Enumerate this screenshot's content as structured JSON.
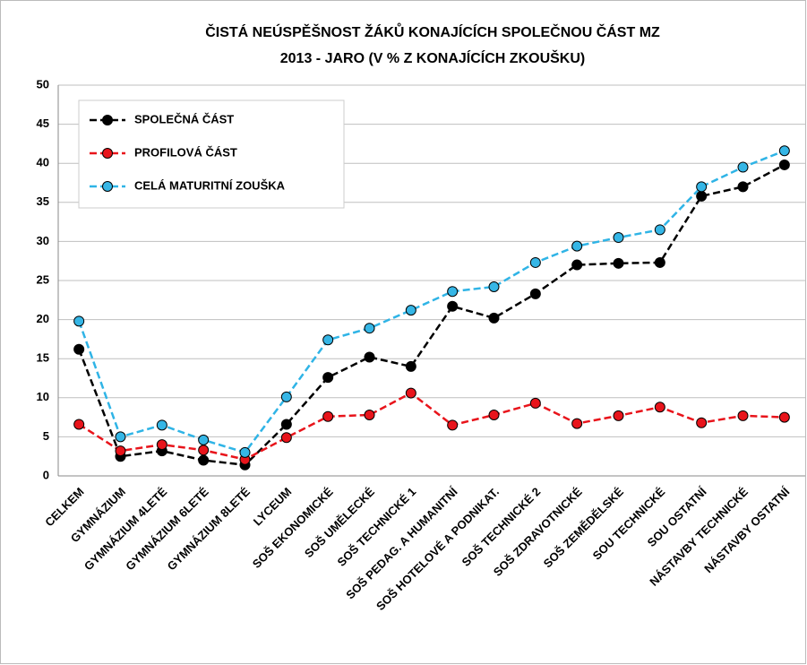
{
  "chart_data": {
    "type": "line",
    "title": [
      "ČISTÁ NEÚSPĚŠNOST ŽÁKŮ KONAJÍCÍCH SPOLEČNOU ČÁST MZ",
      "2013 - JARO (V % Z KONAJÍCÍCH ZKOUŠKU)"
    ],
    "categories": [
      "CELKEM",
      "GYMNÁZIUM",
      "GYMNÁZIUM 4LETÉ",
      "GYMNÁZIUM 6LETÉ",
      "GYMNÁZIUM 8LETÉ",
      "LYCEUM",
      "SOŠ EKONOMICKÉ",
      "SOŠ UMĚLECKÉ",
      "SOŠ TECHNICKÉ 1",
      "SOŠ PEDAG. A HUMANITNÍ",
      "SOŠ HOTELOVÉ A PODNIKAT.",
      "SOŠ TECHNICKÉ 2",
      "SOŠ ZDRAVOTNICKÉ",
      "SOŠ ZEMĚDĚLSKÉ",
      "SOU TECHNICKÉ",
      "SOU OSTATNÍ",
      "NÁSTAVBY TECHNICKÉ",
      "NÁSTAVBY OSTATNÍ"
    ],
    "series": [
      {
        "name": "SPOLEČNÁ ČÁST",
        "color": "#000000",
        "marker_color": "#000000",
        "values": [
          16.2,
          2.5,
          3.2,
          2.0,
          1.4,
          6.6,
          12.6,
          15.2,
          14.0,
          21.7,
          20.2,
          23.3,
          27.0,
          27.2,
          27.3,
          35.8,
          37.0,
          39.8
        ]
      },
      {
        "name": "PROFILOVÁ ČÁST",
        "color": "#e8141b",
        "marker_color": "#e8141b",
        "values": [
          6.6,
          3.2,
          4.0,
          3.3,
          2.1,
          4.9,
          7.6,
          7.8,
          10.6,
          6.5,
          7.8,
          9.3,
          6.7,
          7.7,
          8.8,
          6.8,
          7.7,
          7.5
        ]
      },
      {
        "name": "CELÁ MATURITNÍ ZOUŠKA",
        "color": "#2fb4e6",
        "marker_color": "#35b6e6",
        "values": [
          19.8,
          5.0,
          6.5,
          4.6,
          3.0,
          10.1,
          17.4,
          18.9,
          21.2,
          23.6,
          24.2,
          27.3,
          29.4,
          30.5,
          31.5,
          37.0,
          39.5,
          41.6
        ]
      }
    ],
    "ylim": [
      0,
      50
    ],
    "yticks": [
      0,
      5,
      10,
      15,
      20,
      25,
      30,
      35,
      40,
      45,
      50
    ],
    "grid": true,
    "legend": "upper left"
  }
}
